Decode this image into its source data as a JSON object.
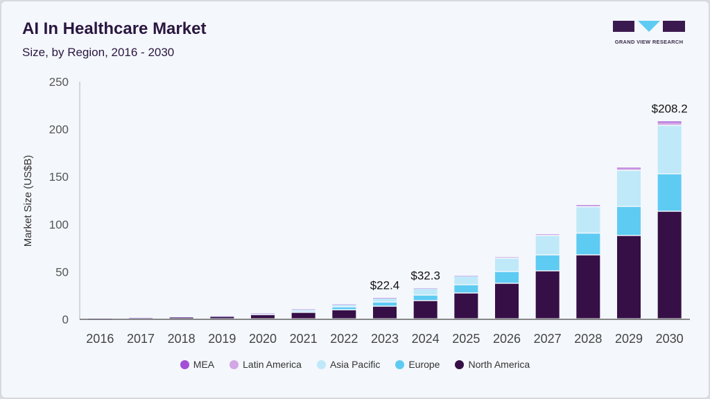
{
  "header": {
    "title": "AI In Healthcare Market",
    "subtitle": "Size, by Region, 2016 - 2030"
  },
  "logo": {
    "text": "GRAND VIEW RESEARCH"
  },
  "chart_data": {
    "type": "bar",
    "stacked": true,
    "ylabel": "Market Size (US$B)",
    "xlabel": "",
    "ylim": [
      0,
      250
    ],
    "yticks": [
      0,
      50,
      100,
      150,
      200,
      250
    ],
    "grid": false,
    "legend_position": "bottom",
    "categories": [
      "2016",
      "2017",
      "2018",
      "2019",
      "2020",
      "2021",
      "2022",
      "2023",
      "2024",
      "2025",
      "2026",
      "2027",
      "2028",
      "2029",
      "2030"
    ],
    "series": [
      {
        "name": "North America",
        "color": "#360f47",
        "values": [
          0.4,
          1.2,
          1.8,
          2.5,
          4.4,
          6.8,
          9.5,
          13.3,
          19.2,
          27.2,
          37.4,
          50.5,
          67.3,
          87.7,
          113.2
        ]
      },
      {
        "name": "Europe",
        "color": "#5ecbf3",
        "values": [
          0.05,
          0.15,
          0.2,
          0.3,
          1.2,
          1.4,
          3.1,
          4.4,
          5.8,
          8.7,
          12.4,
          16.8,
          22.9,
          30.6,
          39.4
        ]
      },
      {
        "name": "Asia Pacific",
        "color": "#bfe9f9",
        "values": [
          0.03,
          0.1,
          0.15,
          0.15,
          0.3,
          2.0,
          2.7,
          4.2,
          7.1,
          9.3,
          14.1,
          20.4,
          27.7,
          37.9,
          51.0
        ]
      },
      {
        "name": "Latin America",
        "color": "#d3a7e6",
        "values": [
          0.01,
          0.03,
          0.04,
          0.04,
          0.05,
          0.1,
          0.2,
          0.35,
          0.15,
          0.3,
          1.2,
          1.4,
          1.9,
          2.7,
          3.6
        ]
      },
      {
        "name": "MEA",
        "color": "#a34fd6",
        "values": [
          0.01,
          0.02,
          0.02,
          0.03,
          0.03,
          0.05,
          0.1,
          0.15,
          0.05,
          0.1,
          0.2,
          0.3,
          0.4,
          0.6,
          1.0
        ]
      }
    ],
    "data_labels": [
      {
        "category": "2023",
        "text": "$22.4"
      },
      {
        "category": "2024",
        "text": "$32.3"
      },
      {
        "category": "2030",
        "text": "$208.2"
      }
    ],
    "legend_order": [
      "MEA",
      "Latin America",
      "Asia Pacific",
      "Europe",
      "North America"
    ]
  }
}
